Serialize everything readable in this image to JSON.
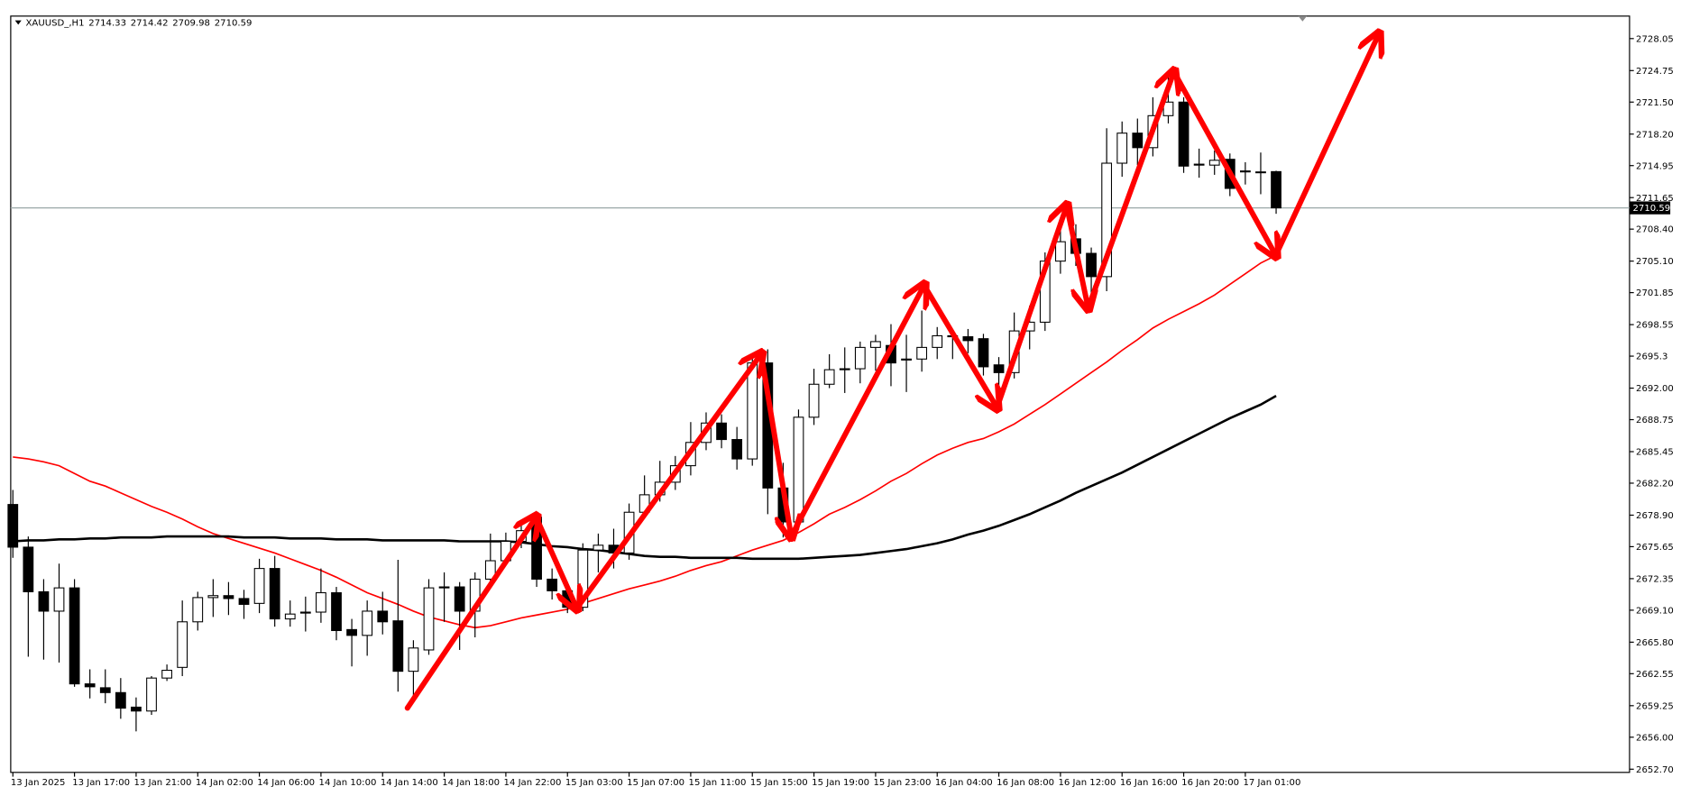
{
  "chart_data": {
    "type": "candlestick",
    "title": "XAUUSD_,H1",
    "categories": [
      "13 Jan 2025",
      null,
      null,
      null,
      "13 Jan 17:00",
      null,
      null,
      null,
      "13 Jan 21:00",
      null,
      null,
      null,
      "14 Jan 02:00",
      null,
      null,
      null,
      "14 Jan 06:00",
      null,
      null,
      null,
      "14 Jan 10:00",
      null,
      null,
      null,
      "14 Jan 14:00",
      null,
      null,
      null,
      "14 Jan 18:00",
      null,
      null,
      null,
      "14 Jan 22:00",
      null,
      null,
      null,
      "15 Jan 03:00",
      null,
      null,
      null,
      "15 Jan 07:00",
      null,
      null,
      null,
      "15 Jan 11:00",
      null,
      null,
      null,
      "15 Jan 15:00",
      null,
      null,
      null,
      "15 Jan 19:00",
      null,
      null,
      null,
      "15 Jan 23:00",
      null,
      null,
      null,
      "16 Jan 04:00",
      null,
      null,
      null,
      "16 Jan 08:00",
      null,
      null,
      null,
      "16 Jan 12:00",
      null,
      null,
      null,
      "16 Jan 16:00",
      null,
      null,
      null,
      "16 Jan 20:00",
      null,
      null,
      null,
      "17 Jan 01:00",
      null,
      null
    ],
    "open": [
      2680.0,
      2675.6,
      2671.0,
      2669.0,
      2671.4,
      2661.5,
      2661.1,
      2660.6,
      2659.1,
      2658.7,
      2662.1,
      2663.2,
      2667.9,
      2670.4,
      2670.6,
      2670.3,
      2669.8,
      2673.4,
      2668.2,
      2668.8,
      2668.9,
      2670.9,
      2667.1,
      2666.5,
      2669.0,
      2668.0,
      2662.8,
      2665.0,
      2671.4,
      2671.5,
      2669.0,
      2672.3,
      2674.2,
      2676.2,
      2678.7,
      2672.3,
      2671.1,
      2669.4,
      2675.3,
      2675.8,
      2675.0,
      2679.2,
      2681.0,
      2682.3,
      2684.0,
      2686.4,
      2688.4,
      2686.7,
      2684.7,
      2694.6,
      2681.7,
      2678.2,
      2689.0,
      2692.4,
      2693.9,
      2694.0,
      2696.2,
      2696.4,
      2694.9,
      2695.0,
      2696.2,
      2697.4,
      2697.3,
      2697.1,
      2694.4,
      2693.6,
      2697.9,
      2698.8,
      2705.1,
      2707.4,
      2705.9,
      2703.5,
      2715.2,
      2718.3,
      2716.8,
      2720.1,
      2721.5,
      2715.0,
      2715.0,
      2715.6,
      2714.3,
      2714.3,
      2714.33
    ],
    "high": [
      2681.5,
      2676.7,
      2672.3,
      2673.9,
      2672.3,
      2663.0,
      2663.0,
      2662.1,
      2660.1,
      2662.3,
      2663.5,
      2670.1,
      2671.0,
      2672.3,
      2672.0,
      2671.2,
      2674.4,
      2674.7,
      2670.1,
      2670.5,
      2673.4,
      2671.5,
      2668.2,
      2670.1,
      2671.0,
      2674.3,
      2666.0,
      2672.3,
      2673.0,
      2672.0,
      2673.0,
      2677.0,
      2677.1,
      2678.3,
      2679.0,
      2673.4,
      2672.0,
      2676.0,
      2677.0,
      2677.5,
      2680.1,
      2683.0,
      2684.5,
      2685.0,
      2688.5,
      2689.5,
      2689.3,
      2688.0,
      2695.3,
      2696.0,
      2684.3,
      2689.8,
      2694.0,
      2695.5,
      2696.2,
      2696.8,
      2697.5,
      2698.6,
      2697.5,
      2700.0,
      2698.3,
      2698.0,
      2698.1,
      2697.6,
      2695.2,
      2699.8,
      2700.5,
      2706.0,
      2709.0,
      2708.9,
      2706.5,
      2718.8,
      2719.5,
      2719.8,
      2722.0,
      2724.2,
      2722.0,
      2716.7,
      2716.5,
      2716.2,
      2715.3,
      2716.3,
      2714.42
    ],
    "low": [
      2674.5,
      2664.3,
      2664.0,
      2663.7,
      2661.2,
      2660.0,
      2659.5,
      2657.9,
      2656.6,
      2658.3,
      2661.8,
      2662.3,
      2667.0,
      2668.4,
      2668.6,
      2668.2,
      2668.8,
      2667.4,
      2667.4,
      2666.9,
      2667.8,
      2666.0,
      2663.3,
      2664.4,
      2666.6,
      2660.7,
      2660.3,
      2664.5,
      2667.9,
      2665.0,
      2666.3,
      2671.5,
      2673.9,
      2675.5,
      2671.5,
      2670.2,
      2668.8,
      2669.0,
      2673.0,
      2673.4,
      2674.3,
      2678.6,
      2680.3,
      2681.5,
      2683.0,
      2685.6,
      2685.8,
      2683.6,
      2684.0,
      2679.0,
      2676.6,
      2677.4,
      2688.2,
      2692.0,
      2691.5,
      2692.5,
      2693.8,
      2692.2,
      2691.6,
      2693.7,
      2695.0,
      2695.0,
      2695.6,
      2693.3,
      2691.6,
      2693.0,
      2696.0,
      2697.9,
      2703.8,
      2704.6,
      2701.3,
      2702.0,
      2713.8,
      2715.0,
      2715.9,
      2719.3,
      2714.2,
      2713.7,
      2714.0,
      2711.8,
      2713.0,
      2712.0,
      2709.98
    ],
    "close": [
      2675.6,
      2671.0,
      2669.0,
      2671.4,
      2661.5,
      2661.2,
      2660.6,
      2659.0,
      2658.7,
      2662.1,
      2662.9,
      2667.9,
      2670.4,
      2670.6,
      2670.3,
      2669.7,
      2673.4,
      2668.2,
      2668.7,
      2668.9,
      2670.9,
      2667.0,
      2666.5,
      2669.0,
      2667.9,
      2662.8,
      2665.2,
      2671.4,
      2671.5,
      2669.0,
      2672.3,
      2674.2,
      2676.2,
      2677.3,
      2672.3,
      2671.1,
      2669.4,
      2675.3,
      2675.8,
      2675.0,
      2679.2,
      2681.0,
      2682.3,
      2684.0,
      2686.4,
      2688.4,
      2686.7,
      2684.7,
      2694.6,
      2681.7,
      2678.2,
      2689.0,
      2692.4,
      2693.9,
      2694.0,
      2696.2,
      2696.8,
      2694.6,
      2695.0,
      2696.2,
      2697.4,
      2697.3,
      2696.9,
      2694.2,
      2693.6,
      2697.9,
      2698.8,
      2705.1,
      2707.1,
      2705.9,
      2703.5,
      2715.2,
      2718.3,
      2716.8,
      2720.1,
      2721.5,
      2714.9,
      2715.1,
      2715.5,
      2712.6,
      2714.4,
      2714.3,
      2710.59
    ],
    "up_color": "#ffffff",
    "down_color": "#000000",
    "series": [
      {
        "color": "#ff0000",
        "values": [
          2684.9,
          2684.7,
          2684.4,
          2684.0,
          2683.2,
          2682.4,
          2681.9,
          2681.2,
          2680.5,
          2679.8,
          2679.2,
          2678.5,
          2677.7,
          2677.0,
          2676.5,
          2676.0,
          2675.5,
          2675.0,
          2674.4,
          2673.8,
          2673.2,
          2672.5,
          2671.7,
          2670.9,
          2670.3,
          2669.7,
          2669.0,
          2668.4,
          2668.0,
          2667.6,
          2667.3,
          2667.5,
          2667.9,
          2668.3,
          2668.6,
          2668.9,
          2669.2,
          2669.8,
          2670.3,
          2670.8,
          2671.3,
          2671.7,
          2672.1,
          2672.6,
          2673.2,
          2673.7,
          2674.1,
          2674.7,
          2675.3,
          2675.8,
          2676.3,
          2677.1,
          2678.0,
          2679.0,
          2679.7,
          2680.5,
          2681.4,
          2682.4,
          2683.2,
          2684.2,
          2685.1,
          2685.8,
          2686.4,
          2686.8,
          2687.5,
          2688.3,
          2689.3,
          2690.3,
          2691.4,
          2692.5,
          2693.6,
          2694.7,
          2695.9,
          2697.0,
          2698.2,
          2699.1,
          2699.9,
          2700.7,
          2701.6,
          2702.7,
          2703.8,
          2704.9,
          2705.7
        ]
      },
      {
        "color": "#000000",
        "values": [
          2676.2,
          2676.3,
          2676.3,
          2676.4,
          2676.4,
          2676.5,
          2676.5,
          2676.6,
          2676.6,
          2676.6,
          2676.7,
          2676.7,
          2676.7,
          2676.7,
          2676.7,
          2676.6,
          2676.6,
          2676.6,
          2676.5,
          2676.5,
          2676.5,
          2676.4,
          2676.4,
          2676.4,
          2676.3,
          2676.3,
          2676.3,
          2676.3,
          2676.3,
          2676.2,
          2676.2,
          2676.2,
          2676.2,
          2676.1,
          2675.9,
          2675.7,
          2675.6,
          2675.4,
          2675.3,
          2675.1,
          2674.9,
          2674.7,
          2674.6,
          2674.6,
          2674.5,
          2674.5,
          2674.5,
          2674.5,
          2674.4,
          2674.4,
          2674.4,
          2674.4,
          2674.5,
          2674.6,
          2674.7,
          2674.8,
          2675.0,
          2675.2,
          2675.4,
          2675.7,
          2676.0,
          2676.4,
          2676.9,
          2677.3,
          2677.8,
          2678.4,
          2679.0,
          2679.7,
          2680.4,
          2681.2,
          2681.9,
          2682.6,
          2683.3,
          2684.1,
          2684.9,
          2685.7,
          2686.5,
          2687.3,
          2688.1,
          2688.9,
          2689.6,
          2690.3,
          2691.2
        ]
      }
    ],
    "ylim": [
      2652.37,
      2730.37
    ],
    "yticks": [
      2728.05,
      2724.75,
      {
        "value": 2721.5,
        "label": "2721.50"
      },
      {
        "value": 2718.2,
        "label": "2718.20"
      },
      2714.95,
      2711.65,
      {
        "value": 2708.4,
        "label": "2708.40"
      },
      {
        "value": 2705.1,
        "label": "2705.10"
      },
      2701.85,
      2698.55,
      2695.3,
      {
        "value": 2692.0,
        "label": "2692.00"
      },
      2688.75,
      2685.45,
      {
        "value": 2682.2,
        "label": "2682.20"
      },
      {
        "value": 2678.9,
        "label": "2678.90"
      },
      2675.65,
      2672.35,
      {
        "value": 2669.1,
        "label": "2669.10"
      },
      {
        "value": 2665.8,
        "label": "2665.80"
      },
      2662.55,
      2659.25,
      {
        "value": 2656.0,
        "label": "2656.00"
      },
      {
        "value": 2652.7,
        "label": "2652.70"
      }
    ]
  }
}
